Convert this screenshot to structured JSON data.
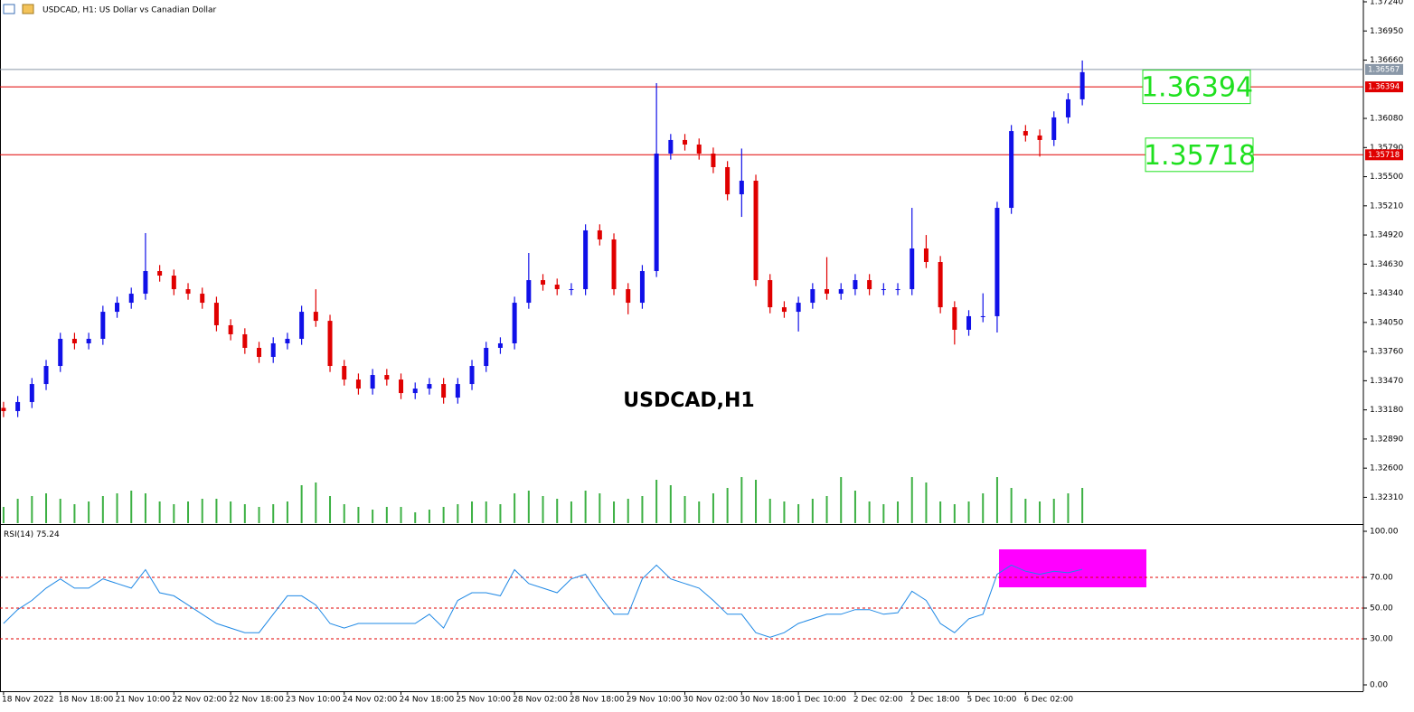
{
  "chart_data": {
    "type": "candlestick",
    "header": "USDCAD, H1:  US Dollar vs Canadian Dollar",
    "title": "USDCAD,H1",
    "up_color": "#1010e8",
    "down_color": "#e00000",
    "open": [
      1.332,
      1.33168,
      1.33258,
      1.33437,
      1.33617,
      1.33887,
      1.33842,
      1.33887,
      1.34156,
      1.34246,
      1.34336,
      1.34561,
      1.34516,
      1.34381,
      1.34336,
      1.34246,
      1.34022,
      1.33932,
      1.33797,
      1.33707,
      1.33842,
      1.33887,
      1.34156,
      1.34066,
      1.33617,
      1.33482,
      1.33392,
      1.33527,
      1.33482,
      1.33347,
      1.33392,
      1.33437,
      1.33302,
      1.33437,
      1.33617,
      1.33797,
      1.33842,
      1.34246,
      1.34471,
      1.34426,
      1.34381,
      1.34381,
      1.34966,
      1.34876,
      1.34381,
      1.34246,
      1.34561,
      1.3573,
      1.35865,
      1.3582,
      1.3573,
      1.35595,
      1.35325,
      1.3546,
      1.34471,
      1.34201,
      1.34156,
      1.34246,
      1.34381,
      1.34336,
      1.34381,
      1.34471,
      1.34381,
      1.34381,
      1.34381,
      1.34786,
      1.34651,
      1.34201,
      1.33977,
      1.34112,
      1.34112,
      1.3519,
      1.35954,
      1.3591,
      1.35865,
      1.3609,
      1.3627
    ],
    "high": [
      1.3326,
      1.33318,
      1.33497,
      1.33677,
      1.33947,
      1.33947,
      1.33947,
      1.34216,
      1.34306,
      1.34396,
      1.34939,
      1.34621,
      1.34576,
      1.34441,
      1.34396,
      1.34306,
      1.34082,
      1.33992,
      1.33857,
      1.33902,
      1.33947,
      1.34216,
      1.3438,
      1.34126,
      1.33677,
      1.33542,
      1.33587,
      1.33587,
      1.33542,
      1.33452,
      1.33497,
      1.33497,
      1.33497,
      1.33677,
      1.33857,
      1.33902,
      1.34306,
      1.34741,
      1.34531,
      1.34486,
      1.34441,
      1.35026,
      1.35026,
      1.34936,
      1.34441,
      1.34621,
      1.36431,
      1.35925,
      1.35925,
      1.3588,
      1.3579,
      1.35655,
      1.3578,
      1.3552,
      1.34531,
      1.34261,
      1.34306,
      1.34441,
      1.347,
      1.34441,
      1.34531,
      1.34531,
      1.34441,
      1.34441,
      1.3519,
      1.3492,
      1.34711,
      1.34261,
      1.34172,
      1.3434,
      1.3525,
      1.36014,
      1.36014,
      1.3597,
      1.3615,
      1.3633,
      1.36656
    ],
    "low": [
      1.33108,
      1.33108,
      1.33198,
      1.33377,
      1.33557,
      1.33782,
      1.33782,
      1.33827,
      1.34096,
      1.34186,
      1.34276,
      1.34456,
      1.34321,
      1.34276,
      1.34186,
      1.33962,
      1.33872,
      1.33737,
      1.33647,
      1.33647,
      1.33782,
      1.33827,
      1.34006,
      1.33557,
      1.33422,
      1.33332,
      1.33332,
      1.33422,
      1.33287,
      1.33287,
      1.33332,
      1.33242,
      1.33242,
      1.33377,
      1.33557,
      1.33737,
      1.33782,
      1.34186,
      1.34366,
      1.34321,
      1.34321,
      1.34321,
      1.34816,
      1.34321,
      1.34131,
      1.34186,
      1.34501,
      1.3567,
      1.3576,
      1.3567,
      1.35535,
      1.35265,
      1.351,
      1.34411,
      1.34141,
      1.34096,
      1.3396,
      1.34186,
      1.34276,
      1.34276,
      1.34321,
      1.34321,
      1.34321,
      1.34321,
      1.34321,
      1.34591,
      1.34141,
      1.3383,
      1.33917,
      1.34052,
      1.3395,
      1.3513,
      1.3585,
      1.357,
      1.35805,
      1.3603,
      1.3621
    ],
    "close": [
      1.33168,
      1.33258,
      1.33437,
      1.33617,
      1.33887,
      1.33842,
      1.33887,
      1.34156,
      1.34246,
      1.34336,
      1.34561,
      1.34516,
      1.34381,
      1.34336,
      1.34246,
      1.34022,
      1.33932,
      1.33797,
      1.33707,
      1.33842,
      1.33887,
      1.34156,
      1.34066,
      1.33617,
      1.33482,
      1.33392,
      1.33527,
      1.33482,
      1.33347,
      1.33392,
      1.33437,
      1.33302,
      1.33437,
      1.33617,
      1.33797,
      1.33842,
      1.34246,
      1.34471,
      1.34426,
      1.34381,
      1.34381,
      1.34966,
      1.34876,
      1.34381,
      1.34246,
      1.34561,
      1.3573,
      1.35865,
      1.3582,
      1.3573,
      1.35595,
      1.35325,
      1.3546,
      1.34471,
      1.34201,
      1.34156,
      1.34246,
      1.34381,
      1.34336,
      1.34381,
      1.34471,
      1.34381,
      1.34381,
      1.34381,
      1.34786,
      1.34651,
      1.34201,
      1.33977,
      1.34112,
      1.34112,
      1.3519,
      1.35954,
      1.3591,
      1.35865,
      1.3609,
      1.3627,
      1.3654
    ],
    "ylim": [
      1.32044,
      1.37258
    ],
    "yticks": [
      {
        "value": 1.3724,
        "label": "1.37240"
      },
      {
        "value": 1.3695,
        "label": "1.36950"
      },
      {
        "value": 1.3666,
        "label": "1.36660"
      },
      {
        "value": 1.3608,
        "label": "1.36080"
      },
      {
        "value": 1.3579,
        "label": "1.35790"
      },
      {
        "value": 1.355,
        "label": "1.35500"
      },
      {
        "value": 1.3521,
        "label": "1.35210"
      },
      {
        "value": 1.3492,
        "label": "1.34920"
      },
      {
        "value": 1.3463,
        "label": "1.34630"
      },
      {
        "value": 1.3434,
        "label": "1.34340"
      },
      {
        "value": 1.3405,
        "label": "1.34050"
      },
      {
        "value": 1.3376,
        "label": "1.33760"
      },
      {
        "value": 1.3347,
        "label": "1.33470"
      },
      {
        "value": 1.3318,
        "label": "1.33180"
      },
      {
        "value": 1.3289,
        "label": "1.32890"
      },
      {
        "value": 1.326,
        "label": "1.32600"
      },
      {
        "value": 1.3231,
        "label": "1.32310"
      }
    ],
    "xlim": [
      -0.25,
      95.8
    ],
    "xticks": [
      {
        "value": 0,
        "label": "18 Nov 2022"
      },
      {
        "value": 4,
        "label": "18 Nov 18:00"
      },
      {
        "value": 8,
        "label": "21 Nov 10:00"
      },
      {
        "value": 12,
        "label": "22 Nov 02:00"
      },
      {
        "value": 16,
        "label": "22 Nov 18:00"
      },
      {
        "value": 20,
        "label": "23 Nov 10:00"
      },
      {
        "value": 24,
        "label": "24 Nov 02:00"
      },
      {
        "value": 28,
        "label": "24 Nov 18:00"
      },
      {
        "value": 32,
        "label": "25 Nov 10:00"
      },
      {
        "value": 36,
        "label": "28 Nov 02:00"
      },
      {
        "value": 40,
        "label": "28 Nov 18:00"
      },
      {
        "value": 44,
        "label": "29 Nov 10:00"
      },
      {
        "value": 48,
        "label": "30 Nov 02:00"
      },
      {
        "value": 52,
        "label": "30 Nov 18:00"
      },
      {
        "value": 56,
        "label": "1 Dec 10:00"
      },
      {
        "value": 60,
        "label": "2 Dec 02:00"
      },
      {
        "value": 64,
        "label": "2 Dec 18:00"
      },
      {
        "value": 68,
        "label": "5 Dec 10:00"
      },
      {
        "value": 72,
        "label": "6 Dec 02:00"
      }
    ],
    "last_price": {
      "value": 1.36567,
      "color": "#8a98a8"
    },
    "levels": [
      {
        "value": 1.36394,
        "color": "#e00000"
      },
      {
        "value": 1.35718,
        "color": "#e00000"
      }
    ],
    "volume": {
      "color": "#3cb043",
      "ylim": [
        0,
        10000
      ],
      "values": [
        3000,
        4500,
        5000,
        5500,
        4500,
        3500,
        4000,
        5000,
        5500,
        6000,
        5500,
        4000,
        3500,
        4000,
        4500,
        4500,
        4000,
        3500,
        3000,
        3500,
        4000,
        7000,
        7500,
        5000,
        3500,
        3000,
        2500,
        3000,
        3000,
        2000,
        2500,
        3000,
        3500,
        4000,
        4000,
        3500,
        5500,
        6000,
        5000,
        4500,
        4000,
        6000,
        5500,
        4000,
        4500,
        5000,
        8000,
        7000,
        5000,
        4000,
        5500,
        6500,
        8500,
        8000,
        4500,
        4000,
        3500,
        4500,
        5000,
        8500,
        6000,
        4000,
        3500,
        4000,
        8500,
        7500,
        4000,
        3500,
        4000,
        5500,
        8500,
        6500,
        4500,
        4000,
        4500,
        5500,
        6500
      ]
    },
    "rsi": {
      "name": "RSI(14)",
      "color": "#1e88e5",
      "ylim": [
        0,
        100
      ],
      "yticks": [
        {
          "value": 100,
          "label": "100.00"
        },
        {
          "value": 70,
          "label": "70.00"
        },
        {
          "value": 50,
          "label": "50.00"
        },
        {
          "value": 30,
          "label": "30.00"
        },
        {
          "value": 0,
          "label": "0.00"
        }
      ],
      "levels": [
        70,
        50,
        30
      ],
      "level_color": "#e00000",
      "values": [
        40,
        49,
        55,
        63,
        69,
        63,
        63,
        69,
        66,
        63,
        75,
        60,
        58,
        52,
        46,
        40,
        37,
        34,
        34,
        46,
        58,
        58,
        52,
        40,
        37,
        40,
        40,
        40,
        40,
        40,
        46,
        37,
        55,
        60,
        60,
        58,
        75,
        66,
        63,
        60,
        69,
        72,
        58,
        46,
        46,
        69,
        78,
        69,
        66,
        63,
        55,
        46,
        46,
        34,
        31,
        34,
        40,
        43,
        46,
        46,
        49,
        49,
        46,
        47,
        61,
        55,
        40,
        34,
        43,
        46,
        72,
        78,
        74,
        72,
        74,
        73,
        75.24
      ]
    }
  }
}
